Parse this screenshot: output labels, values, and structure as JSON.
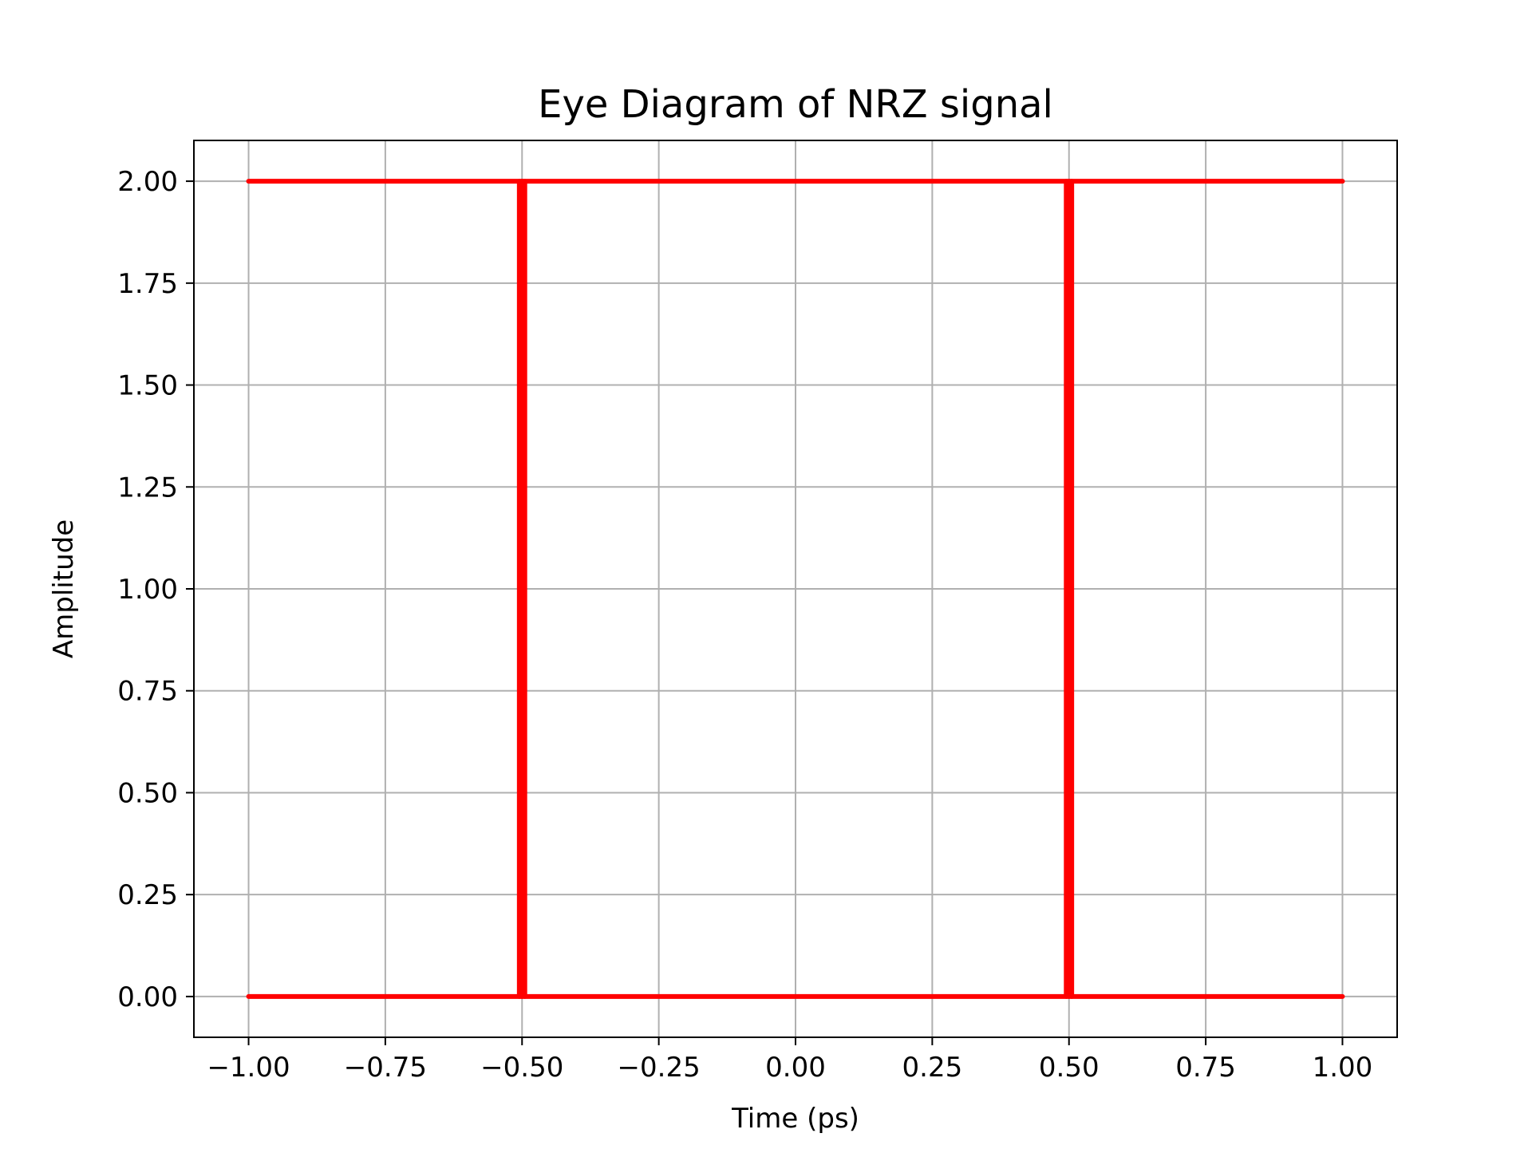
{
  "chart_data": {
    "type": "line",
    "title": "Eye Diagram of NRZ signal",
    "xlabel": "Time (ps)",
    "ylabel": "Amplitude",
    "xlim": [
      -1.1,
      1.1
    ],
    "ylim": [
      -0.1,
      2.1
    ],
    "grid": true,
    "legend": "none",
    "line_color": "#ff0000",
    "grid_color": "#b0b0b0",
    "x_ticks": [
      -1.0,
      -0.75,
      -0.5,
      -0.25,
      0.0,
      0.25,
      0.5,
      0.75,
      1.0
    ],
    "x_tick_labels": [
      "−1.00",
      "−0.75",
      "−0.50",
      "−0.25",
      "0.00",
      "0.25",
      "0.50",
      "0.75",
      "1.00"
    ],
    "y_ticks": [
      0.0,
      0.25,
      0.5,
      0.75,
      1.0,
      1.25,
      1.5,
      1.75,
      2.0
    ],
    "y_tick_labels": [
      "0.00",
      "0.25",
      "0.50",
      "0.75",
      "1.00",
      "1.25",
      "1.50",
      "1.75",
      "2.00"
    ],
    "series": [
      {
        "x": [
          -1.0,
          1.0
        ],
        "y": [
          2.0,
          2.0
        ]
      },
      {
        "x": [
          -1.0,
          1.0
        ],
        "y": [
          0.0,
          0.0
        ]
      },
      {
        "x": [
          -0.505,
          -0.505
        ],
        "y": [
          0.0,
          2.0
        ]
      },
      {
        "x": [
          -0.495,
          -0.495
        ],
        "y": [
          0.0,
          2.0
        ]
      },
      {
        "x": [
          -0.5,
          -0.5
        ],
        "y": [
          0.0,
          2.0
        ]
      },
      {
        "x": [
          0.495,
          0.495
        ],
        "y": [
          0.0,
          2.0
        ]
      },
      {
        "x": [
          0.505,
          0.505
        ],
        "y": [
          0.0,
          2.0
        ]
      },
      {
        "x": [
          0.5,
          0.5
        ],
        "y": [
          0.0,
          2.0
        ]
      }
    ]
  }
}
